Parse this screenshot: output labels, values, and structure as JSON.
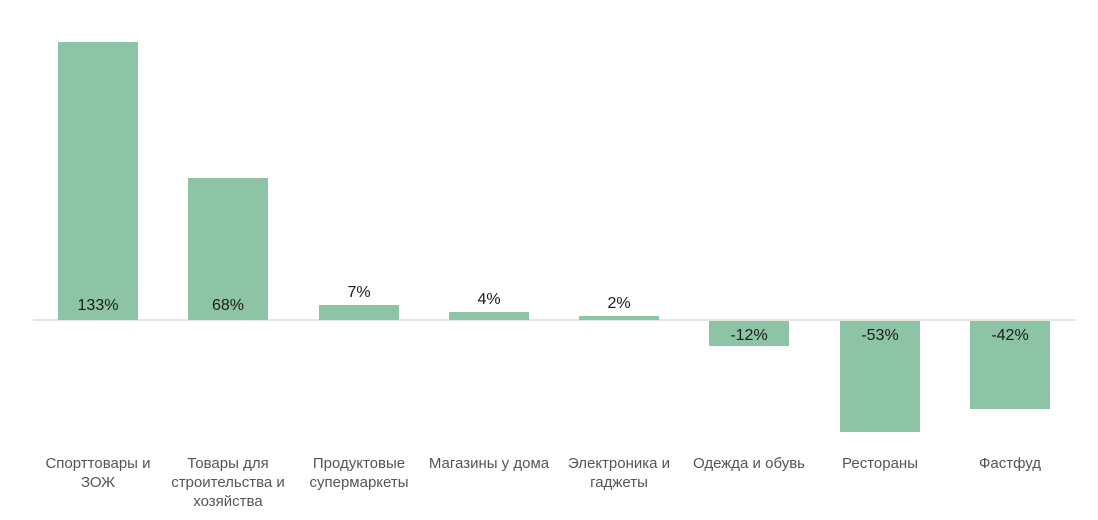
{
  "chart_data": {
    "type": "bar",
    "title": "",
    "categories": [
      "Спорттовары и ЗОЖ",
      "Товары для строительства и хозяйства",
      "Продуктовые супермаркеты",
      "Магазины у дома",
      "Электроника и гаджеты",
      "Одежда и обувь",
      "Рестораны",
      "Фастфуд"
    ],
    "values": [
      133,
      68,
      7,
      4,
      2,
      -12,
      -53,
      -42
    ],
    "value_labels": [
      "133%",
      "68%",
      "7%",
      "4%",
      "2%",
      "-12%",
      "-53%",
      "-42%"
    ],
    "unit": "%",
    "baseline_value": 0,
    "grid": "off",
    "legend": "none",
    "y_axis": "hidden",
    "colors": {
      "bar": "#8cc4a5",
      "value_label": "#1a1a1a",
      "category_label": "#555555",
      "axis_line": "#e6e6e6",
      "background": "#ffffff"
    }
  }
}
